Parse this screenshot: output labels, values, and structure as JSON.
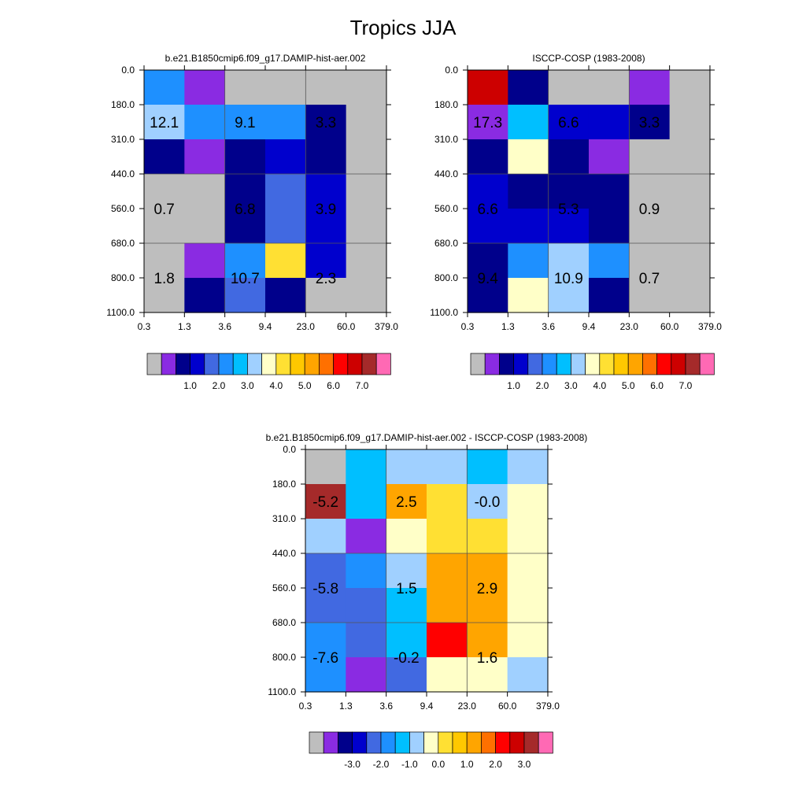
{
  "figure": {
    "title": "Tropics JJA"
  },
  "palette": {
    "abs": [
      "#bebebe",
      "#8a2be2",
      "#00008b",
      "#0000cd",
      "#4169e1",
      "#1e90ff",
      "#00bfff",
      "#a0d0ff",
      "#ffffc8",
      "#ffe033",
      "#ffc800",
      "#ffa500",
      "#ff7000",
      "#ff0000",
      "#cd0000",
      "#a52a2a",
      "#ff69b4"
    ],
    "diff": [
      "#bebebe",
      "#8a2be2",
      "#00008b",
      "#0000cd",
      "#4169e1",
      "#1e90ff",
      "#00bfff",
      "#a0d0ff",
      "#ffffc8",
      "#ffe033",
      "#ffc800",
      "#ffa500",
      "#ff7000",
      "#ff0000",
      "#cd0000",
      "#a52a2a",
      "#ff69b4"
    ]
  },
  "chart_data": [
    {
      "type": "heatmap",
      "title": "b.e21.B1850cmip6.f09_g17.DAMIP-hist-aer.002",
      "xticks": [
        "0.3",
        "1.3",
        "3.6",
        "9.4",
        "23.0",
        "60.0",
        "379.0"
      ],
      "yticks": [
        "0.0",
        "180.0",
        "310.0",
        "440.0",
        "560.0",
        "680.0",
        "800.0",
        "1100.0"
      ],
      "cells": [
        [
          5,
          1,
          0,
          0,
          0,
          0
        ],
        [
          7,
          5,
          5,
          5,
          2,
          0
        ],
        [
          2,
          1,
          2,
          3,
          2,
          0
        ],
        [
          0,
          0,
          2,
          4,
          3,
          0
        ],
        [
          0,
          0,
          2,
          4,
          3,
          0
        ],
        [
          0,
          1,
          5,
          9,
          3,
          0
        ],
        [
          0,
          2,
          4,
          2,
          0,
          0
        ]
      ],
      "block_labels": [
        {
          "text": "12.1",
          "col": 0.5,
          "row": 1.5
        },
        {
          "text": "9.1",
          "col": 2.5,
          "row": 1.5
        },
        {
          "text": "3.3",
          "col": 4.5,
          "row": 1.5
        },
        {
          "text": "0.7",
          "col": 0.5,
          "row": 4
        },
        {
          "text": "6.8",
          "col": 2.5,
          "row": 4
        },
        {
          "text": "3.9",
          "col": 4.5,
          "row": 4
        },
        {
          "text": "1.8",
          "col": 0.5,
          "row": 6
        },
        {
          "text": "10.7",
          "col": 2.5,
          "row": 6
        },
        {
          "text": "2.3",
          "col": 4.5,
          "row": 6
        }
      ],
      "colorbar": {
        "labels": [
          "1.0",
          "2.0",
          "3.0",
          "4.0",
          "5.0",
          "6.0",
          "7.0"
        ]
      }
    },
    {
      "type": "heatmap",
      "title": "ISCCP-COSP (1983-2008)",
      "xticks": [
        "0.3",
        "1.3",
        "3.6",
        "9.4",
        "23.0",
        "60.0",
        "379.0"
      ],
      "yticks": [
        "0.0",
        "180.0",
        "310.0",
        "440.0",
        "560.0",
        "680.0",
        "800.0",
        "1100.0"
      ],
      "cells": [
        [
          14,
          2,
          0,
          0,
          1,
          0
        ],
        [
          1,
          6,
          3,
          3,
          2,
          0
        ],
        [
          2,
          8,
          2,
          1,
          0,
          0
        ],
        [
          3,
          2,
          2,
          2,
          0,
          0
        ],
        [
          3,
          3,
          3,
          2,
          0,
          0
        ],
        [
          2,
          5,
          7,
          5,
          0,
          0
        ],
        [
          2,
          8,
          7,
          2,
          0,
          0
        ]
      ],
      "block_labels": [
        {
          "text": "17.3",
          "col": 0.5,
          "row": 1.5
        },
        {
          "text": "6.6",
          "col": 2.5,
          "row": 1.5
        },
        {
          "text": "3.3",
          "col": 4.5,
          "row": 1.5
        },
        {
          "text": "6.6",
          "col": 0.5,
          "row": 4
        },
        {
          "text": "5.3",
          "col": 2.5,
          "row": 4
        },
        {
          "text": "0.9",
          "col": 4.5,
          "row": 4
        },
        {
          "text": "9.4",
          "col": 0.5,
          "row": 6
        },
        {
          "text": "10.9",
          "col": 2.5,
          "row": 6
        },
        {
          "text": "0.7",
          "col": 4.5,
          "row": 6
        }
      ],
      "colorbar": {
        "labels": [
          "1.0",
          "2.0",
          "3.0",
          "4.0",
          "5.0",
          "6.0",
          "7.0"
        ]
      }
    },
    {
      "type": "heatmap",
      "title": "b.e21.B1850cmip6.f09_g17.DAMIP-hist-aer.002 - ISCCP-COSP (1983-2008)",
      "xticks": [
        "0.3",
        "1.3",
        "3.6",
        "9.4",
        "23.0",
        "60.0",
        "379.0"
      ],
      "yticks": [
        "0.0",
        "180.0",
        "310.0",
        "440.0",
        "560.0",
        "680.0",
        "800.0",
        "1100.0"
      ],
      "cells": [
        [
          0,
          6,
          7,
          7,
          6,
          7
        ],
        [
          15,
          6,
          11,
          9,
          7,
          8
        ],
        [
          7,
          1,
          8,
          9,
          9,
          8
        ],
        [
          4,
          5,
          7,
          11,
          11,
          8
        ],
        [
          4,
          4,
          6,
          11,
          11,
          8
        ],
        [
          5,
          4,
          6,
          13,
          11,
          8
        ],
        [
          5,
          1,
          4,
          8,
          8,
          7
        ]
      ],
      "block_labels": [
        {
          "text": "-5.2",
          "col": 0.5,
          "row": 1.5
        },
        {
          "text": "2.5",
          "col": 2.5,
          "row": 1.5
        },
        {
          "text": "-0.0",
          "col": 4.5,
          "row": 1.5
        },
        {
          "text": "-5.8",
          "col": 0.5,
          "row": 4
        },
        {
          "text": "1.5",
          "col": 2.5,
          "row": 4
        },
        {
          "text": "2.9",
          "col": 4.5,
          "row": 4
        },
        {
          "text": "-7.6",
          "col": 0.5,
          "row": 6
        },
        {
          "text": "-0.2",
          "col": 2.5,
          "row": 6
        },
        {
          "text": "1.6",
          "col": 4.5,
          "row": 6
        }
      ],
      "colorbar": {
        "labels": [
          "-3.0",
          "-2.0",
          "-1.0",
          "0.0",
          "1.0",
          "2.0",
          "3.0"
        ]
      }
    }
  ]
}
